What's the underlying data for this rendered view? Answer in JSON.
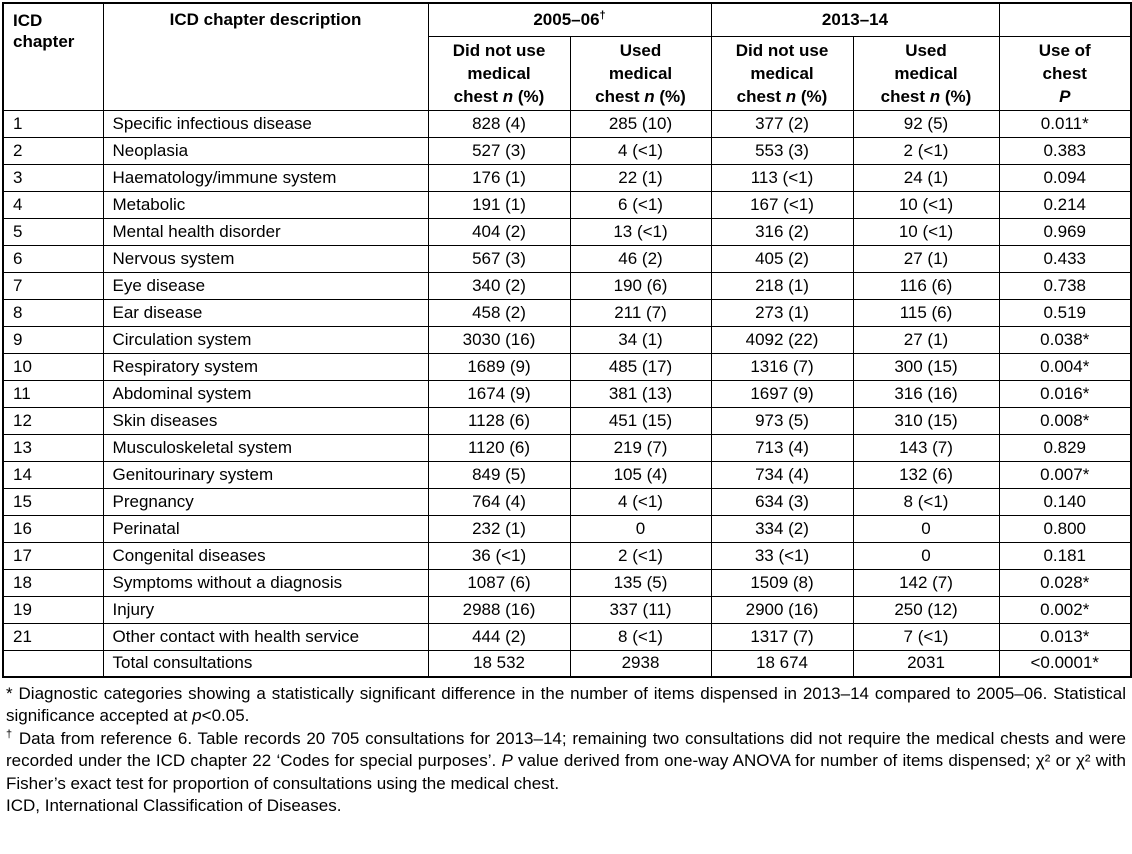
{
  "table": {
    "header": {
      "chapter_col": "ICD chapter",
      "description_col": "ICD chapter description",
      "group_2005": {
        "text": "2005–06",
        "dagger": "†"
      },
      "group_2013": "2013–14",
      "did_not_use": {
        "l1": "Did not use",
        "l2": "medical",
        "l3_pre": "chest ",
        "l3_n": "n",
        "l3_post": " (%)"
      },
      "used": {
        "l1": "Used",
        "l2": "medical",
        "l3_pre": "chest ",
        "l3_n": "n",
        "l3_post": " (%)"
      },
      "p_col": {
        "l1": "Use of",
        "l2": "chest",
        "l3": "P"
      }
    },
    "rows": [
      {
        "chapter": "1",
        "description": "Specific infectious disease",
        "dnu_2005": "828 (4)",
        "u_2005": "285 (10)",
        "dnu_2013": "377 (2)",
        "u_2013": "92 (5)",
        "p": "0.011*"
      },
      {
        "chapter": "2",
        "description": "Neoplasia",
        "dnu_2005": "527 (3)",
        "u_2005": "4 (<1)",
        "dnu_2013": "553 (3)",
        "u_2013": "2 (<1)",
        "p": "0.383"
      },
      {
        "chapter": "3",
        "description": "Haematology/immune system",
        "dnu_2005": "176 (1)",
        "u_2005": "22 (1)",
        "dnu_2013": "113 (<1)",
        "u_2013": "24 (1)",
        "p": "0.094"
      },
      {
        "chapter": "4",
        "description": "Metabolic",
        "dnu_2005": "191 (1)",
        "u_2005": "6 (<1)",
        "dnu_2013": "167 (<1)",
        "u_2013": "10 (<1)",
        "p": "0.214"
      },
      {
        "chapter": "5",
        "description": "Mental health disorder",
        "dnu_2005": "404 (2)",
        "u_2005": "13 (<1)",
        "dnu_2013": "316 (2)",
        "u_2013": "10 (<1)",
        "p": "0.969"
      },
      {
        "chapter": "6",
        "description": "Nervous system",
        "dnu_2005": "567 (3)",
        "u_2005": "46 (2)",
        "dnu_2013": "405 (2)",
        "u_2013": "27 (1)",
        "p": "0.433"
      },
      {
        "chapter": "7",
        "description": "Eye disease",
        "dnu_2005": "340 (2)",
        "u_2005": "190 (6)",
        "dnu_2013": "218 (1)",
        "u_2013": "116 (6)",
        "p": "0.738"
      },
      {
        "chapter": "8",
        "description": "Ear disease",
        "dnu_2005": "458 (2)",
        "u_2005": "211 (7)",
        "dnu_2013": "273 (1)",
        "u_2013": "115 (6)",
        "p": "0.519"
      },
      {
        "chapter": "9",
        "description": "Circulation system",
        "dnu_2005": "3030 (16)",
        "u_2005": "34 (1)",
        "dnu_2013": "4092 (22)",
        "u_2013": "27 (1)",
        "p": "0.038*"
      },
      {
        "chapter": "10",
        "description": "Respiratory system",
        "dnu_2005": "1689 (9)",
        "u_2005": "485 (17)",
        "dnu_2013": "1316 (7)",
        "u_2013": "300 (15)",
        "p": "0.004*"
      },
      {
        "chapter": "11",
        "description": "Abdominal system",
        "dnu_2005": "1674 (9)",
        "u_2005": "381 (13)",
        "dnu_2013": "1697 (9)",
        "u_2013": "316 (16)",
        "p": "0.016*"
      },
      {
        "chapter": "12",
        "description": "Skin diseases",
        "dnu_2005": "1128 (6)",
        "u_2005": "451 (15)",
        "dnu_2013": "973 (5)",
        "u_2013": "310 (15)",
        "p": "0.008*"
      },
      {
        "chapter": "13",
        "description": "Musculoskeletal system",
        "dnu_2005": "1120 (6)",
        "u_2005": "219 (7)",
        "dnu_2013": "713 (4)",
        "u_2013": "143 (7)",
        "p": "0.829"
      },
      {
        "chapter": "14",
        "description": "Genitourinary system",
        "dnu_2005": "849 (5)",
        "u_2005": "105 (4)",
        "dnu_2013": "734 (4)",
        "u_2013": "132 (6)",
        "p": "0.007*"
      },
      {
        "chapter": "15",
        "description": "Pregnancy",
        "dnu_2005": "764 (4)",
        "u_2005": "4 (<1)",
        "dnu_2013": "634 (3)",
        "u_2013": "8 (<1)",
        "p": "0.140"
      },
      {
        "chapter": "16",
        "description": "Perinatal",
        "dnu_2005": "232 (1)",
        "u_2005": "0",
        "dnu_2013": "334 (2)",
        "u_2013": "0",
        "p": "0.800"
      },
      {
        "chapter": "17",
        "description": "Congenital diseases",
        "dnu_2005": "36 (<1)",
        "u_2005": "2 (<1)",
        "dnu_2013": "33 (<1)",
        "u_2013": "0",
        "p": "0.181"
      },
      {
        "chapter": "18",
        "description": "Symptoms without a diagnosis",
        "dnu_2005": "1087 (6)",
        "u_2005": "135 (5)",
        "dnu_2013": "1509 (8)",
        "u_2013": "142 (7)",
        "p": "0.028*"
      },
      {
        "chapter": "19",
        "description": "Injury",
        "dnu_2005": "2988 (16)",
        "u_2005": "337 (11)",
        "dnu_2013": "2900 (16)",
        "u_2013": "250 (12)",
        "p": "0.002*"
      },
      {
        "chapter": "21",
        "description": "Other contact with health service",
        "dnu_2005": "444 (2)",
        "u_2005": "8 (<1)",
        "dnu_2013": "1317 (7)",
        "u_2013": "7 (<1)",
        "p": "0.013*"
      },
      {
        "chapter": "",
        "description": "Total consultations",
        "dnu_2005": "18 532",
        "u_2005": "2938",
        "dnu_2013": "18 674",
        "u_2013": "2031",
        "p": "<0.0001*"
      }
    ]
  },
  "footnotes": {
    "significance": {
      "s1": "* Diagnostic categories showing a statistically significant difference in the number of items dispensed in 2013–14 compared to 2005–06. Statistical significance accepted at ",
      "p_italic": "p",
      "s3": "<0.05."
    },
    "data_source": {
      "dagger": "†",
      "s2": " Data from reference 6. Table records 20 705 consultations for 2013–14; remaining two consultations did not require the medical chests and were recorded under the ICD chapter 22 ‘Codes for special purposes’. ",
      "P_italic": "P",
      "s4": " value derived from one-way ANOVA for number of items dispensed; χ² or χ² with Fisher’s exact test for proportion of consultations using the medical chest."
    },
    "abbreviation": "ICD, International Classification of Diseases."
  }
}
